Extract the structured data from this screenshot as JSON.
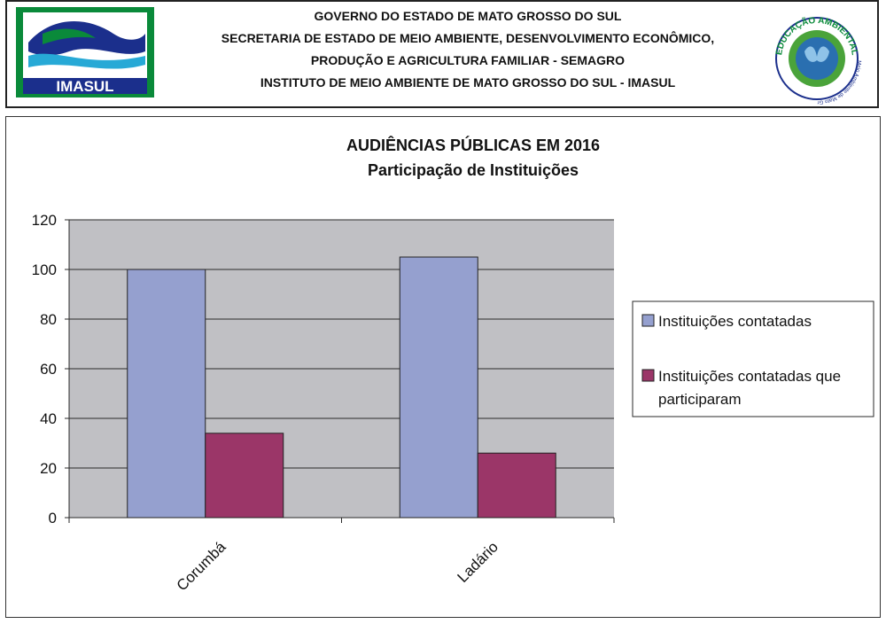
{
  "header": {
    "line1": "GOVERNO DO ESTADO DE MATO GROSSO DO SUL",
    "line2": "SECRETARIA DE ESTADO DE MEIO AMBIENTE, DESENVOLVIMENTO ECONÔMICO,",
    "line3": "PRODUÇÃO E AGRICULTURA FAMILIAR - SEMAGRO",
    "line4": "INSTITUTO DE MEIO AMBIENTE DE MATO GROSSO DO SUL - IMASUL",
    "left_logo_text": "IMASUL",
    "right_logo_text": "EDUCAÇÃO AMBIENTAL",
    "right_logo_small": "Instituto de Meio Ambiente de Mato Grosso do Sul",
    "colors": {
      "logo_green": "#0a8a3a",
      "logo_blue": "#1b2f8c",
      "logo_cyan": "#27a9d6"
    }
  },
  "chart_data": {
    "type": "bar",
    "title": "AUDIÊNCIAS PÚBLICAS EM 2016",
    "subtitle": "Participação de Instituições",
    "categories": [
      "Corumbá",
      "Ladário"
    ],
    "series": [
      {
        "name": "Instituições contatadas",
        "values": [
          100,
          105
        ],
        "color": "#95a0cf"
      },
      {
        "name": "Instituições contatadas que participaram",
        "values": [
          34,
          26
        ],
        "color": "#9b3668"
      }
    ],
    "legend_lines": [
      [
        "Instituições contatadas"
      ],
      [
        "Instituições contatadas que",
        "participaram"
      ]
    ],
    "ylim": [
      0,
      120
    ],
    "yticks": [
      "0",
      "20",
      "40",
      "60",
      "80",
      "100",
      "120"
    ],
    "grid": true,
    "legend_position": "right",
    "plot_background": "#c0c0c4"
  }
}
